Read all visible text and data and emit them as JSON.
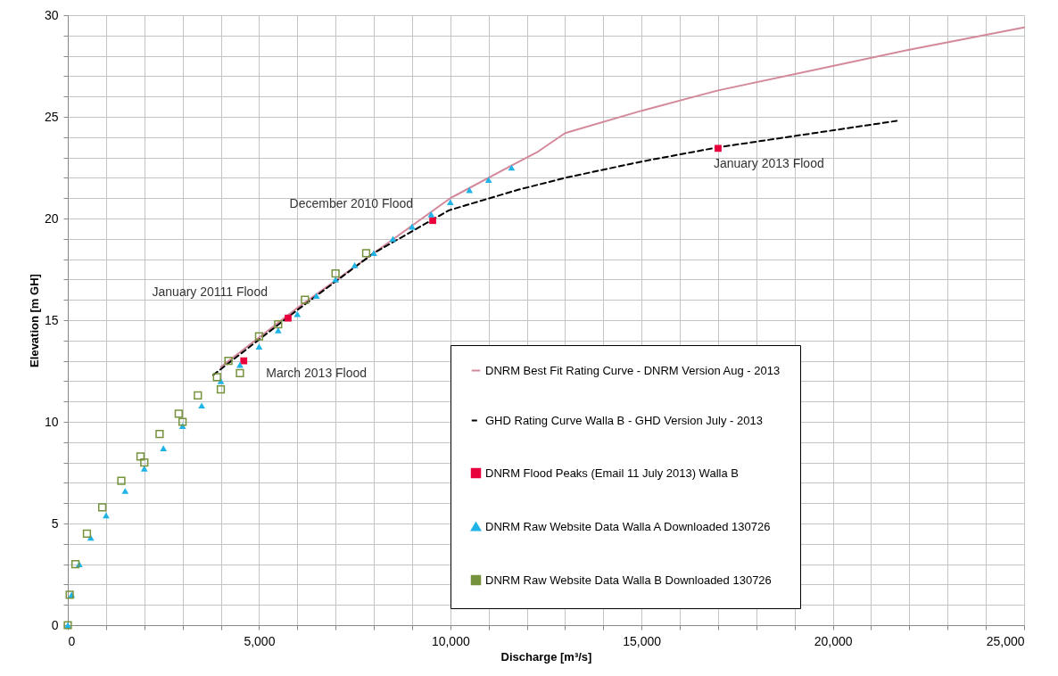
{
  "chart_data": {
    "type": "scatter",
    "xlabel": "Discharge [m³/s]",
    "ylabel": "Elevation [m GH]",
    "xlim": [
      0,
      25000
    ],
    "ylim": [
      0,
      30
    ],
    "xticks": [
      0,
      {
        "value": 1000,
        "label": null
      },
      {
        "value": 2000,
        "label": null
      },
      {
        "value": 3000,
        "label": null
      },
      {
        "value": 4000,
        "label": null
      },
      {
        "value": 5000,
        "label": "5,000"
      },
      {
        "value": 6000,
        "label": null
      },
      {
        "value": 7000,
        "label": null
      },
      {
        "value": 8000,
        "label": null
      },
      {
        "value": 9000,
        "label": null
      },
      {
        "value": 10000,
        "label": "10,000"
      },
      {
        "value": 11000,
        "label": null
      },
      {
        "value": 12000,
        "label": null
      },
      {
        "value": 13000,
        "label": null
      },
      {
        "value": 14000,
        "label": null
      },
      {
        "value": 15000,
        "label": "15,000"
      },
      {
        "value": 16000,
        "label": null
      },
      {
        "value": 17000,
        "label": null
      },
      {
        "value": 18000,
        "label": null
      },
      {
        "value": 19000,
        "label": null
      },
      {
        "value": 20000,
        "label": "20,000"
      },
      {
        "value": 21000,
        "label": null
      },
      {
        "value": 22000,
        "label": null
      },
      {
        "value": 23000,
        "label": null
      },
      {
        "value": 24000,
        "label": null
      },
      {
        "value": 25000,
        "label": "25,000"
      }
    ],
    "yticks": [
      0,
      {
        "value": 1,
        "label": null
      },
      {
        "value": 2,
        "label": null
      },
      {
        "value": 3,
        "label": null
      },
      {
        "value": 4,
        "label": null
      },
      5,
      {
        "value": 6,
        "label": null
      },
      {
        "value": 7,
        "label": null
      },
      {
        "value": 8,
        "label": null
      },
      {
        "value": 9,
        "label": null
      },
      10,
      {
        "value": 11,
        "label": null
      },
      {
        "value": 12,
        "label": null
      },
      {
        "value": 13,
        "label": null
      },
      {
        "value": 14,
        "label": null
      },
      15,
      {
        "value": 16,
        "label": null
      },
      {
        "value": 17,
        "label": null
      },
      {
        "value": 18,
        "label": null
      },
      {
        "value": 19,
        "label": null
      },
      20,
      {
        "value": 21,
        "label": null
      },
      {
        "value": 22,
        "label": null
      },
      {
        "value": 23,
        "label": null
      },
      {
        "value": 24,
        "label": null
      },
      25,
      {
        "value": 26,
        "label": null
      },
      {
        "value": 27,
        "label": null
      },
      {
        "value": 28,
        "label": null
      },
      {
        "value": 29,
        "label": null
      },
      30
    ],
    "grid": true,
    "legend": "bottom right",
    "series": [
      {
        "name": "DNRM Best Fit Rating Curve - DNRM Version Aug - 2013",
        "type": "line",
        "line_style": "solid",
        "color": "#d4899a",
        "x": [
          4000,
          6000,
          8000,
          10000,
          11600,
          12300,
          13000,
          15000,
          17000,
          20000,
          22000,
          25000
        ],
        "values": [
          12.7,
          15.6,
          18.3,
          21.0,
          22.6,
          23.3,
          24.2,
          25.3,
          26.3,
          27.5,
          28.3,
          29.4
        ]
      },
      {
        "name": "GHD Rating Curve Walla B - GHD Version July - 2013",
        "type": "line",
        "line_style": "dashed",
        "color": "#000000",
        "x": [
          3800,
          6000,
          8000,
          9960,
          11750,
          13000,
          15000,
          17000,
          21670
        ],
        "values": [
          12.3,
          15.5,
          18.3,
          20.4,
          21.4,
          22.0,
          22.8,
          23.5,
          24.8
        ]
      },
      {
        "name": "DNRM Flood Peaks (Email 11 July 2013) Walla B",
        "type": "scatter",
        "marker": "square",
        "color": "#e8003c",
        "x": [
          4600,
          5760,
          9540,
          17000
        ],
        "values": [
          13.0,
          15.1,
          19.9,
          23.45
        ]
      },
      {
        "name": "DNRM Raw Website Data Walla A Downloaded 130726",
        "type": "scatter",
        "marker": "triangle",
        "color": "#1fb3e6",
        "x": [
          0,
          100,
          300,
          600,
          1000,
          1500,
          2000,
          2500,
          3000,
          3500,
          4000,
          4500,
          5000,
          5500,
          6000,
          6500,
          7000,
          7500,
          8000,
          8500,
          9000,
          9500,
          10000,
          10500,
          11000,
          11600
        ],
        "values": [
          0,
          1.5,
          3.0,
          4.3,
          5.4,
          6.6,
          7.7,
          8.7,
          9.8,
          10.8,
          12.0,
          12.8,
          13.7,
          14.5,
          15.3,
          16.2,
          17.0,
          17.7,
          18.3,
          19.0,
          19.6,
          20.2,
          20.8,
          21.4,
          21.9,
          22.5
        ]
      },
      {
        "name": "DNRM Raw Website Data Walla B Downloaded 130726",
        "type": "scatter",
        "marker": "square",
        "color": "#76923c",
        "x": [
          0,
          50,
          200,
          500,
          900,
          1400,
          1900,
          2400,
          2900,
          3400,
          3900,
          2000,
          3000,
          4000,
          4500,
          4200,
          5000,
          5500,
          6200,
          7000,
          7800
        ],
        "values": [
          0,
          1.5,
          3.0,
          4.5,
          5.8,
          7.1,
          8.3,
          9.4,
          10.4,
          11.3,
          12.2,
          8.0,
          10.0,
          11.6,
          12.4,
          13.0,
          14.2,
          14.8,
          16.0,
          17.3,
          18.3
        ]
      }
    ],
    "annotations": [
      {
        "text": "March 2013 Flood",
        "x": 4600,
        "y": 13.0
      },
      {
        "text": "January 20111 Flood",
        "x": 5760,
        "y": 15.1
      },
      {
        "text": "December 2010 Flood",
        "x": 9540,
        "y": 19.9
      },
      {
        "text": "January 2013 Flood",
        "x": 17000,
        "y": 23.45
      }
    ]
  }
}
